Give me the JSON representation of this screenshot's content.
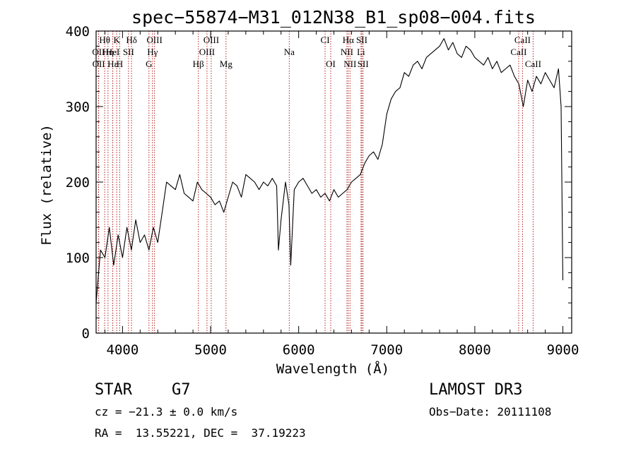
{
  "chart_data": {
    "type": "line",
    "title": "spec−55874−M31_012N38_B1_sp08−004.fits",
    "xlabel": "Wavelength (Å)",
    "ylabel": "Flux (relative)",
    "xlim": [
      3700,
      9100
    ],
    "ylim": [
      0,
      400
    ],
    "xticks": [
      4000,
      5000,
      6000,
      7000,
      8000,
      9000
    ],
    "yticks": [
      0,
      100,
      200,
      300,
      400
    ],
    "grid": false,
    "series": [
      {
        "x": [
          3700,
          3750,
          3800,
          3850,
          3900,
          3950,
          4000,
          4050,
          4100,
          4150,
          4200,
          4250,
          4300,
          4350,
          4400,
          4450,
          4500,
          4550,
          4600,
          4650,
          4700,
          4750,
          4800,
          4850,
          4900,
          4950,
          5000,
          5050,
          5100,
          5150,
          5200,
          5250,
          5300,
          5350,
          5400,
          5450,
          5500,
          5550,
          5600,
          5650,
          5700,
          5750,
          5770,
          5800,
          5850,
          5890,
          5910,
          5950,
          6000,
          6050,
          6100,
          6150,
          6200,
          6250,
          6300,
          6350,
          6400,
          6450,
          6500,
          6550,
          6600,
          6650,
          6700,
          6750,
          6800,
          6850,
          6900,
          6950,
          7000,
          7050,
          7100,
          7150,
          7200,
          7250,
          7300,
          7350,
          7400,
          7450,
          7500,
          7550,
          7600,
          7650,
          7700,
          7750,
          7800,
          7850,
          7900,
          7950,
          8000,
          8050,
          8100,
          8150,
          8200,
          8250,
          8300,
          8350,
          8400,
          8450,
          8500,
          8550,
          8600,
          8650,
          8700,
          8750,
          8800,
          8850,
          8900,
          8950,
          8980,
          9000
        ],
        "y": [
          40,
          110,
          100,
          140,
          90,
          130,
          100,
          140,
          110,
          150,
          120,
          130,
          110,
          140,
          120,
          160,
          200,
          195,
          190,
          210,
          185,
          180,
          175,
          200,
          190,
          185,
          180,
          170,
          175,
          160,
          180,
          200,
          195,
          180,
          210,
          205,
          200,
          190,
          200,
          195,
          205,
          195,
          110,
          150,
          200,
          170,
          90,
          190,
          200,
          205,
          195,
          185,
          190,
          180,
          185,
          175,
          190,
          180,
          185,
          190,
          200,
          205,
          210,
          225,
          235,
          240,
          230,
          250,
          290,
          310,
          320,
          325,
          345,
          340,
          355,
          360,
          350,
          365,
          370,
          375,
          380,
          390,
          375,
          385,
          370,
          365,
          380,
          375,
          365,
          360,
          355,
          365,
          350,
          360,
          345,
          350,
          355,
          340,
          330,
          300,
          335,
          320,
          340,
          330,
          345,
          335,
          325,
          350,
          300,
          70
        ]
      }
    ],
    "lines": [
      {
        "label": "Hθ",
        "wl": 3798,
        "row": 0
      },
      {
        "label": "K",
        "wl": 3934,
        "row": 0
      },
      {
        "label": "Hδ",
        "wl": 4102,
        "row": 0
      },
      {
        "label": "OIII",
        "wl": 4363,
        "row": 0
      },
      {
        "label": "OIII",
        "wl": 5007,
        "row": 0
      },
      {
        "label": "CI",
        "wl": 6300,
        "row": 0
      },
      {
        "label": "Hα",
        "wl": 6563,
        "row": 0
      },
      {
        "label": "SII",
        "wl": 6717,
        "row": 0
      },
      {
        "label": "CaII",
        "wl": 8542,
        "row": 0
      },
      {
        "label": "OII",
        "wl": 3727,
        "row": 1
      },
      {
        "label": "Hη",
        "wl": 3835,
        "row": 1
      },
      {
        "label": "HeI",
        "wl": 3889,
        "row": 1
      },
      {
        "label": "SII",
        "wl": 4068,
        "row": 1
      },
      {
        "label": "Hγ",
        "wl": 4340,
        "row": 1
      },
      {
        "label": "OIII",
        "wl": 4959,
        "row": 1
      },
      {
        "label": "Na",
        "wl": 5893,
        "row": 1
      },
      {
        "label": "NII",
        "wl": 6548,
        "row": 1
      },
      {
        "label": "Li",
        "wl": 6708,
        "row": 1
      },
      {
        "label": "CaII",
        "wl": 8498,
        "row": 1
      },
      {
        "label": "OII",
        "wl": 3729,
        "row": 2
      },
      {
        "label": "Hε",
        "wl": 3889,
        "row": 2
      },
      {
        "label": "H",
        "wl": 3968,
        "row": 2
      },
      {
        "label": "G",
        "wl": 4300,
        "row": 2
      },
      {
        "label": "Hβ",
        "wl": 4861,
        "row": 2
      },
      {
        "label": "Mg",
        "wl": 5175,
        "row": 2
      },
      {
        "label": "OI",
        "wl": 6364,
        "row": 2
      },
      {
        "label": "NII",
        "wl": 6583,
        "row": 2
      },
      {
        "label": "SII",
        "wl": 6731,
        "row": 2
      },
      {
        "label": "CaII",
        "wl": 8662,
        "row": 2
      }
    ]
  },
  "info": {
    "class_label": "STAR",
    "subclass": "G7",
    "redshift": "cz = −21.3 ± 0.0 km/s",
    "coords": "RA =  13.55221, DEC =  37.19223",
    "survey": "LAMOST DR3",
    "obs_date": "Obs−Date: 20111108"
  }
}
